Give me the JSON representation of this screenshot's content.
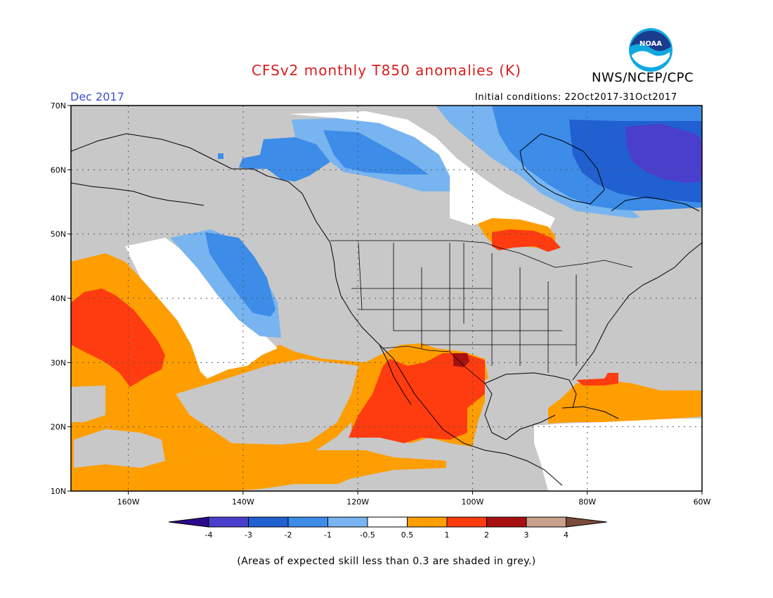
{
  "header": {
    "title": "CFSv2 monthly T850 anomalies (K)",
    "agency": "NWS/NCEP/CPC",
    "logo_text": "NOAA",
    "month": "Dec 2017",
    "initial_conditions": "Initial conditions: 22Oct2017-31Oct2017"
  },
  "map": {
    "lat_labels": [
      "70N",
      "60N",
      "50N",
      "40N",
      "30N",
      "20N",
      "10N"
    ],
    "lon_labels": [
      "160W",
      "140W",
      "120W",
      "100W",
      "80W",
      "60W"
    ],
    "extent": {
      "lon_min": -170,
      "lon_max": -60,
      "lat_min": 10,
      "lat_max": 70
    },
    "skill_mask_color": "#c8c8c8"
  },
  "colorbar": {
    "tick_labels": [
      "-4",
      "-3",
      "-2",
      "-1",
      "-0.5",
      "0.5",
      "1",
      "2",
      "3",
      "4"
    ],
    "colors": [
      "#2b0a8c",
      "#4a3fcc",
      "#2060d0",
      "#3c8ce8",
      "#78b4f0",
      "#ffffff",
      "#ff9e00",
      "#ff3c10",
      "#a81010",
      "#c8a08c",
      "#7a4a3a"
    ],
    "boundaries": [
      -4,
      -3,
      -2,
      -1,
      -0.5,
      0.5,
      1,
      2,
      3,
      4
    ]
  },
  "footnote": "(Areas of expected skill less than 0.3 are shaded in grey.)"
}
